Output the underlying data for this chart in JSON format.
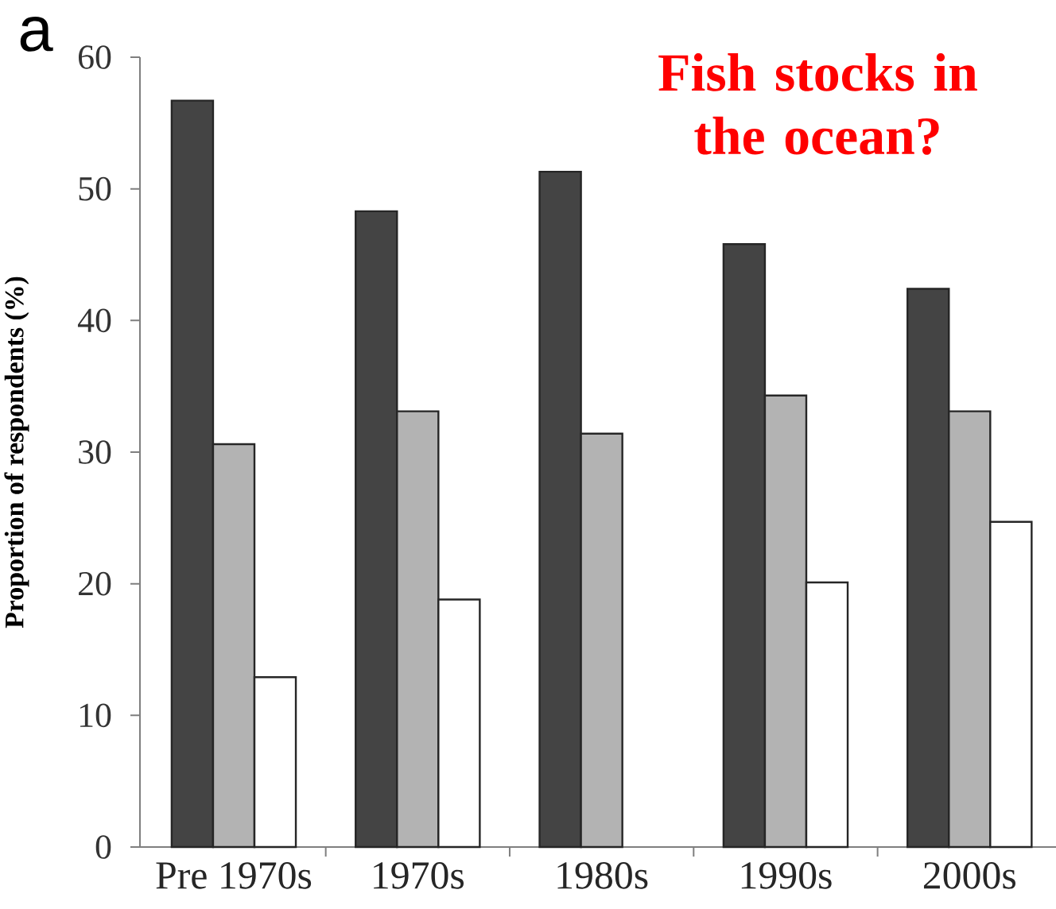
{
  "chart_data": {
    "type": "bar",
    "title": "Fish stocks in the ocean?",
    "ylabel": "Proportion of respondents (%)",
    "annotations": [
      "a"
    ],
    "categories": [
      "Pre 1970s",
      "1970s",
      "1980s",
      "1990s",
      "2000s"
    ],
    "series": [
      {
        "color": "#444444",
        "values": [
          56.7,
          48.3,
          51.3,
          45.8,
          42.4
        ]
      },
      {
        "color": "#b3b3b3",
        "values": [
          30.6,
          33.1,
          31.4,
          34.3,
          33.1
        ]
      },
      {
        "color": "#ffffff",
        "values": [
          12.9,
          18.8,
          null,
          20.1,
          24.7
        ]
      }
    ],
    "ylim": [
      0,
      60
    ],
    "yticks": [
      0,
      10,
      20,
      30,
      40,
      50,
      60
    ]
  }
}
